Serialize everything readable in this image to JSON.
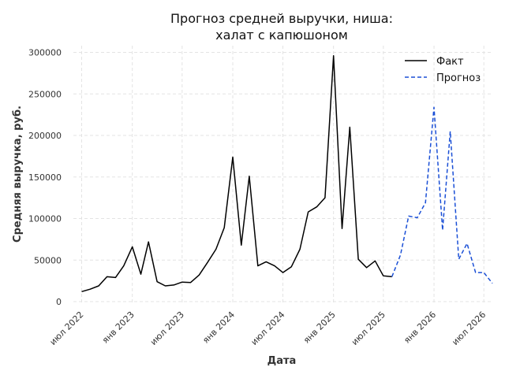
{
  "chart_data": {
    "type": "line",
    "title_lines": [
      "Прогноз средней выручки, ниша:",
      "халат с капюшоном"
    ],
    "xlabel": "Дата",
    "ylabel": "Средняя выручка, руб.",
    "xlim": [
      "2022-06-01",
      "2026-08-01"
    ],
    "ylim": [
      0,
      310000
    ],
    "yticks": [
      0,
      50000,
      100000,
      150000,
      200000,
      250000,
      300000
    ],
    "xticks": [
      {
        "date": "2022-07-01",
        "label": "июл 2022"
      },
      {
        "date": "2023-01-01",
        "label": "янв 2023"
      },
      {
        "date": "2023-07-01",
        "label": "июл 2023"
      },
      {
        "date": "2024-01-01",
        "label": "янв 2024"
      },
      {
        "date": "2024-07-01",
        "label": "июл 2024"
      },
      {
        "date": "2025-01-01",
        "label": "янв 2025"
      },
      {
        "date": "2025-07-01",
        "label": "июл 2025"
      },
      {
        "date": "2026-01-01",
        "label": "янв 2026"
      },
      {
        "date": "2026-07-01",
        "label": "июл 2026"
      }
    ],
    "grid": true,
    "legend_position": "top-right",
    "series": [
      {
        "name": "Факт",
        "color": "#000000",
        "style": "solid",
        "points": [
          [
            "2022-07-01",
            12000
          ],
          [
            "2022-08-01",
            15000
          ],
          [
            "2022-09-01",
            19000
          ],
          [
            "2022-10-01",
            30000
          ],
          [
            "2022-11-01",
            29000
          ],
          [
            "2022-12-01",
            43000
          ],
          [
            "2023-01-01",
            66000
          ],
          [
            "2023-02-01",
            33000
          ],
          [
            "2023-03-01",
            72000
          ],
          [
            "2023-04-01",
            24000
          ],
          [
            "2023-05-01",
            19000
          ],
          [
            "2023-06-01",
            20000
          ],
          [
            "2023-07-01",
            23500
          ],
          [
            "2023-08-01",
            23000
          ],
          [
            "2023-09-01",
            32000
          ],
          [
            "2023-10-01",
            47000
          ],
          [
            "2023-11-01",
            63000
          ],
          [
            "2023-12-01",
            89000
          ],
          [
            "2024-01-01",
            174000
          ],
          [
            "2024-02-01",
            68000
          ],
          [
            "2024-03-01",
            151000
          ],
          [
            "2024-04-01",
            43000
          ],
          [
            "2024-05-01",
            48000
          ],
          [
            "2024-06-01",
            43000
          ],
          [
            "2024-07-01",
            35000
          ],
          [
            "2024-08-01",
            42000
          ],
          [
            "2024-09-01",
            63000
          ],
          [
            "2024-10-01",
            108000
          ],
          [
            "2024-11-01",
            114000
          ],
          [
            "2024-12-01",
            125000
          ],
          [
            "2025-01-01",
            296000
          ],
          [
            "2025-02-01",
            88000
          ],
          [
            "2025-03-01",
            210000
          ],
          [
            "2025-04-01",
            51000
          ],
          [
            "2025-05-01",
            41000
          ],
          [
            "2025-06-01",
            49000
          ],
          [
            "2025-07-01",
            31000
          ],
          [
            "2025-08-01",
            30000
          ]
        ]
      },
      {
        "name": "Прогноз",
        "color": "#1a4fd6",
        "style": "dashed",
        "points": [
          [
            "2025-08-01",
            30000
          ],
          [
            "2025-09-01",
            56000
          ],
          [
            "2025-10-01",
            103000
          ],
          [
            "2025-11-01",
            101000
          ],
          [
            "2025-12-01",
            119000
          ],
          [
            "2026-01-01",
            234000
          ],
          [
            "2026-02-01",
            86000
          ],
          [
            "2026-03-01",
            205000
          ],
          [
            "2026-04-01",
            51000
          ],
          [
            "2026-05-01",
            70000
          ],
          [
            "2026-06-01",
            35000
          ],
          [
            "2026-07-01",
            35000
          ],
          [
            "2026-08-01",
            22000
          ]
        ]
      }
    ]
  }
}
